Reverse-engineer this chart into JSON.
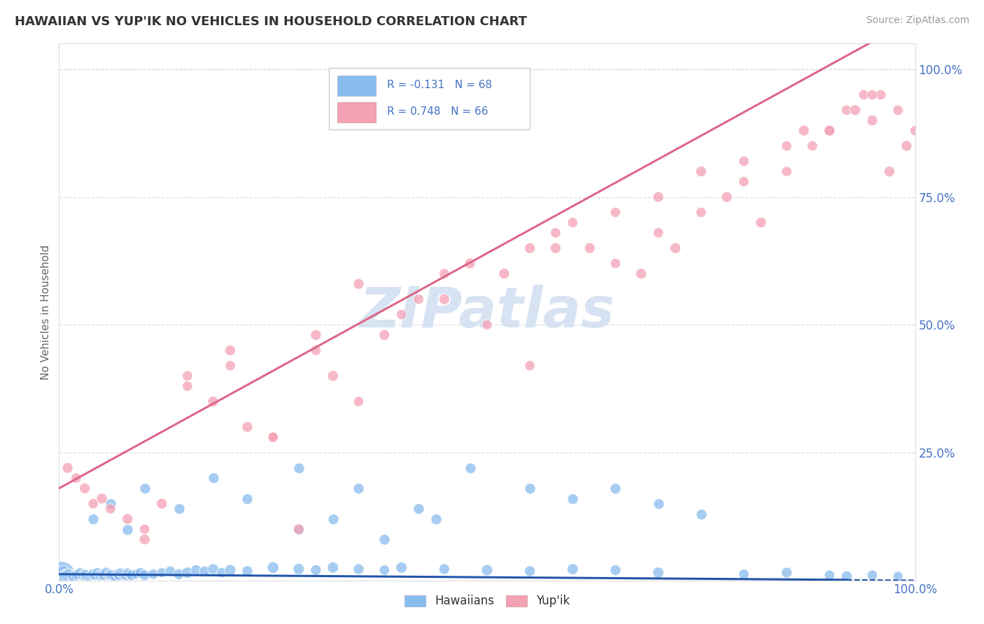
{
  "title": "HAWAIIAN VS YUP'IK NO VEHICLES IN HOUSEHOLD CORRELATION CHART",
  "source_text": "Source: ZipAtlas.com",
  "ylabel": "No Vehicles in Household",
  "watermark": "ZIPatlas",
  "xlim": [
    0,
    1.0
  ],
  "ylim": [
    0,
    1.05
  ],
  "xtick_labels": [
    "0.0%",
    "100.0%"
  ],
  "ytick_labels_right": [
    "100.0%",
    "75.0%",
    "50.0%",
    "25.0%"
  ],
  "ytick_vals_right": [
    1.0,
    0.75,
    0.5,
    0.25
  ],
  "hawaiians_R": -0.131,
  "hawaiians_N": 68,
  "yupik_R": 0.748,
  "yupik_N": 66,
  "hawaiians_color": "#88bbee",
  "yupik_color": "#f4a0b5",
  "hawaiians_line_color": "#2255aa",
  "yupik_line_color": "#dd6688",
  "background_color": "#ffffff",
  "grid_color": "#dddddd",
  "title_color": "#333333",
  "source_color": "#999999",
  "tick_color": "#4472c4",
  "ylabel_color": "#666666",
  "watermark_color": "#d0dff0",
  "legend_text_color": "#4472c4",
  "legend_border_color": "#cccccc",
  "hawaiians_x": [
    0.003,
    0.005,
    0.007,
    0.008,
    0.01,
    0.012,
    0.015,
    0.018,
    0.02,
    0.022,
    0.025,
    0.028,
    0.03,
    0.032,
    0.035,
    0.038,
    0.04,
    0.042,
    0.045,
    0.048,
    0.05,
    0.052,
    0.055,
    0.058,
    0.06,
    0.062,
    0.065,
    0.068,
    0.07,
    0.072,
    0.075,
    0.078,
    0.08,
    0.082,
    0.085,
    0.09,
    0.095,
    0.1,
    0.11,
    0.12,
    0.13,
    0.14,
    0.15,
    0.16,
    0.17,
    0.18,
    0.19,
    0.2,
    0.22,
    0.25,
    0.28,
    0.3,
    0.32,
    0.35,
    0.38,
    0.4,
    0.45,
    0.5,
    0.55,
    0.6,
    0.65,
    0.7,
    0.8,
    0.85,
    0.9,
    0.92,
    0.95,
    0.98
  ],
  "hawaiians_y": [
    0.01,
    0.015,
    0.01,
    0.008,
    0.01,
    0.012,
    0.01,
    0.008,
    0.01,
    0.012,
    0.015,
    0.01,
    0.012,
    0.01,
    0.008,
    0.01,
    0.012,
    0.01,
    0.015,
    0.01,
    0.012,
    0.01,
    0.015,
    0.01,
    0.012,
    0.01,
    0.008,
    0.012,
    0.01,
    0.015,
    0.012,
    0.01,
    0.015,
    0.012,
    0.01,
    0.012,
    0.015,
    0.01,
    0.012,
    0.015,
    0.018,
    0.012,
    0.015,
    0.02,
    0.018,
    0.022,
    0.015,
    0.02,
    0.018,
    0.025,
    0.022,
    0.02,
    0.025,
    0.022,
    0.02,
    0.025,
    0.022,
    0.02,
    0.018,
    0.022,
    0.02,
    0.015,
    0.012,
    0.015,
    0.01,
    0.008,
    0.01,
    0.008
  ],
  "hawaiians_sizes": [
    800,
    200,
    150,
    180,
    160,
    140,
    130,
    150,
    120,
    110,
    100,
    120,
    110,
    130,
    100,
    110,
    120,
    100,
    110,
    120,
    100,
    110,
    120,
    100,
    110,
    120,
    100,
    110,
    120,
    100,
    110,
    120,
    100,
    110,
    120,
    100,
    110,
    120,
    110,
    100,
    110,
    120,
    130,
    120,
    110,
    120,
    110,
    130,
    120,
    140,
    130,
    120,
    130,
    120,
    110,
    130,
    120,
    130,
    120,
    130,
    120,
    130,
    110,
    120,
    110,
    120,
    110,
    100
  ],
  "hawaiians_extra_x": [
    0.04,
    0.06,
    0.08,
    0.1,
    0.14,
    0.18,
    0.22,
    0.28,
    0.35,
    0.42,
    0.48,
    0.55,
    0.6,
    0.65,
    0.7,
    0.75,
    0.28,
    0.32,
    0.38,
    0.44
  ],
  "hawaiians_extra_y": [
    0.12,
    0.15,
    0.1,
    0.18,
    0.14,
    0.2,
    0.16,
    0.22,
    0.18,
    0.14,
    0.22,
    0.18,
    0.16,
    0.18,
    0.15,
    0.13,
    0.1,
    0.12,
    0.08,
    0.12
  ],
  "yupik_x": [
    0.01,
    0.02,
    0.03,
    0.04,
    0.05,
    0.06,
    0.08,
    0.1,
    0.12,
    0.15,
    0.18,
    0.2,
    0.22,
    0.25,
    0.28,
    0.3,
    0.32,
    0.35,
    0.38,
    0.4,
    0.45,
    0.5,
    0.52,
    0.55,
    0.58,
    0.6,
    0.62,
    0.65,
    0.68,
    0.7,
    0.72,
    0.75,
    0.78,
    0.8,
    0.82,
    0.85,
    0.87,
    0.88,
    0.9,
    0.92,
    0.93,
    0.94,
    0.95,
    0.96,
    0.97,
    0.98,
    0.99,
    1.0,
    0.35,
    0.45,
    0.55,
    0.65,
    0.75,
    0.85,
    0.9,
    0.95,
    0.1,
    0.15,
    0.2,
    0.25,
    0.3,
    0.42,
    0.48,
    0.58,
    0.7,
    0.8
  ],
  "yupik_y": [
    0.22,
    0.2,
    0.18,
    0.15,
    0.16,
    0.14,
    0.12,
    0.1,
    0.15,
    0.38,
    0.35,
    0.42,
    0.3,
    0.28,
    0.1,
    0.45,
    0.4,
    0.35,
    0.48,
    0.52,
    0.55,
    0.5,
    0.6,
    0.42,
    0.65,
    0.7,
    0.65,
    0.62,
    0.6,
    0.68,
    0.65,
    0.72,
    0.75,
    0.78,
    0.7,
    0.8,
    0.88,
    0.85,
    0.88,
    0.92,
    0.92,
    0.95,
    0.9,
    0.95,
    0.8,
    0.92,
    0.85,
    0.88,
    0.58,
    0.6,
    0.65,
    0.72,
    0.8,
    0.85,
    0.88,
    0.95,
    0.08,
    0.4,
    0.45,
    0.28,
    0.48,
    0.55,
    0.62,
    0.68,
    0.75,
    0.82
  ],
  "yupik_sizes": [
    120,
    110,
    120,
    110,
    120,
    110,
    120,
    110,
    120,
    110,
    120,
    110,
    120,
    110,
    120,
    110,
    120,
    110,
    120,
    110,
    120,
    110,
    120,
    110,
    120,
    110,
    120,
    110,
    120,
    110,
    120,
    110,
    120,
    110,
    120,
    110,
    120,
    110,
    120,
    110,
    120,
    110,
    120,
    110,
    120,
    110,
    120,
    110,
    120,
    110,
    120,
    110,
    120,
    110,
    120,
    110,
    120,
    110,
    120,
    110,
    120,
    110,
    120,
    110,
    120,
    110
  ],
  "haw_line_x_solid_end": 0.92,
  "haw_line_slope": -0.012,
  "haw_line_intercept": 0.012,
  "yupik_line_slope": 0.92,
  "yupik_line_intercept": 0.18
}
